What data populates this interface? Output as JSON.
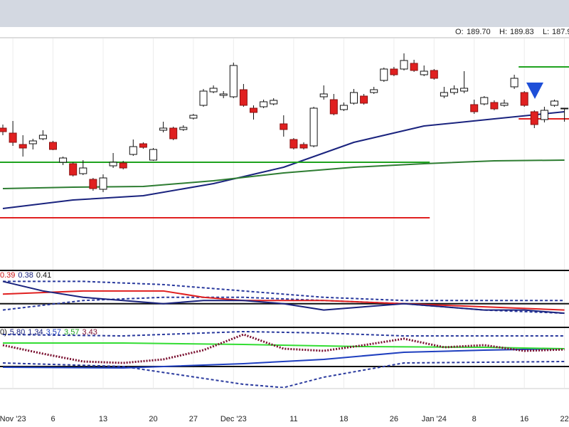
{
  "header": {
    "open_label": "O:",
    "open": "189.70",
    "high_label": "H:",
    "high": "189.83",
    "low_label": "L:",
    "low": "187.9"
  },
  "chart_data": [
    {
      "type": "candlestick",
      "categories": [
        null,
        "Nov '23",
        null,
        null,
        null,
        "6",
        null,
        null,
        null,
        null,
        "13",
        null,
        null,
        null,
        null,
        "20",
        null,
        null,
        null,
        "27",
        null,
        null,
        null,
        "Dec '23",
        null,
        null,
        null,
        null,
        null,
        "11",
        null,
        null,
        null,
        null,
        "18",
        null,
        null,
        null,
        null,
        "26",
        null,
        null,
        null,
        "Jan '24",
        null,
        null,
        null,
        "8",
        null,
        null,
        null,
        null,
        "16",
        null,
        null,
        null,
        "22"
      ],
      "open": [
        187.0,
        186.3,
        184.7,
        184.8,
        185.5,
        185.0,
        182.2,
        182.0,
        180.6,
        179.8,
        178.4,
        181.7,
        182.1,
        183.3,
        184.8,
        182.5,
        186.7,
        187.0,
        186.8,
        188.4,
        190.2,
        192.1,
        191.6,
        191.4,
        192.4,
        189.8,
        190.0,
        190.4,
        187.6,
        185.4,
        184.7,
        184.5,
        191.4,
        191.0,
        189.6,
        190.5,
        191.5,
        192.0,
        193.7,
        195.3,
        195.3,
        196.1,
        194.5,
        195.1,
        191.5,
        192.0,
        192.2,
        190.3,
        190.4,
        190.6,
        190.2,
        192.8,
        192.0,
        189.3,
        188.2,
        190.2,
        189.7
      ],
      "high": [
        187.5,
        188.0,
        186.0,
        185.5,
        186.7,
        185.2,
        183.0,
        182.2,
        182.5,
        180.0,
        180.5,
        183.5,
        182.4,
        185.4,
        185.0,
        184.2,
        187.9,
        187.2,
        187.4,
        189.0,
        192.5,
        193.0,
        192.2,
        196.2,
        193.2,
        190.2,
        191.0,
        191.2,
        188.8,
        185.6,
        185.0,
        190.0,
        193.0,
        191.8,
        190.6,
        192.5,
        191.8,
        192.8,
        195.5,
        195.6,
        197.5,
        196.6,
        195.8,
        195.3,
        192.8,
        193.0,
        195.0,
        191.0,
        191.5,
        190.9,
        191.0,
        194.5,
        192.2,
        189.5,
        190.0,
        191.0,
        189.83
      ],
      "low": [
        186.0,
        184.5,
        183.0,
        184.0,
        185.3,
        183.9,
        181.8,
        180.2,
        180.4,
        178.2,
        178.0,
        181.4,
        181.2,
        183.1,
        184.1,
        182.4,
        186.4,
        185.3,
        186.6,
        188.2,
        190.0,
        191.9,
        191.2,
        191.2,
        190.0,
        188.2,
        189.8,
        190.2,
        185.8,
        184.0,
        184.0,
        184.3,
        191.0,
        188.8,
        189.4,
        190.3,
        190.3,
        191.8,
        193.5,
        194.3,
        195.1,
        194.9,
        194.3,
        193.8,
        191.2,
        191.7,
        191.9,
        189.0,
        190.2,
        189.5,
        190.0,
        192.5,
        190.0,
        187.0,
        187.8,
        190.0,
        187.9
      ],
      "close": [
        186.5,
        185.0,
        184.2,
        185.2,
        186.0,
        184.0,
        182.8,
        180.4,
        181.4,
        178.5,
        180.0,
        182.2,
        181.4,
        184.4,
        184.3,
        184.0,
        187.0,
        185.5,
        187.1,
        188.8,
        192.2,
        192.6,
        191.8,
        195.8,
        190.2,
        189.2,
        190.7,
        190.9,
        186.8,
        184.2,
        184.2,
        189.8,
        191.8,
        189.0,
        190.2,
        192.0,
        190.5,
        192.4,
        195.3,
        194.5,
        196.5,
        195.1,
        195.0,
        194.0,
        192.0,
        192.5,
        192.6,
        189.3,
        191.3,
        189.7,
        190.5,
        194.0,
        190.2,
        187.5,
        189.5,
        190.8,
        189.8
      ],
      "up_color": "#ffffff",
      "down_color": "#e02020",
      "ylim": [
        167.5,
        199.5
      ],
      "overlays": [
        {
          "color": "#1a237e",
          "x": [
            0,
            7,
            14,
            21,
            28,
            35,
            42,
            49,
            56
          ],
          "values": [
            175.7,
            176.9,
            177.5,
            179.2,
            181.5,
            185.0,
            187.3,
            188.3,
            189.3
          ]
        },
        {
          "color": "#2e7d32",
          "x": [
            0,
            7,
            14,
            21,
            28,
            35,
            42,
            49,
            56
          ],
          "values": [
            178.5,
            178.7,
            178.8,
            179.6,
            180.7,
            181.5,
            182.0,
            182.4,
            182.5
          ]
        }
      ],
      "hlines": [
        {
          "from": 0,
          "to": 42,
          "value": 182.2,
          "color": "#1fa31f"
        },
        {
          "from": 0,
          "to": 42,
          "value": 174.4,
          "color": "#e02020"
        },
        {
          "from": 52,
          "to": 56,
          "value": 195.6,
          "color": "#1fa31f"
        },
        {
          "from": 52,
          "to": 56,
          "value": 188.3,
          "color": "#e02020"
        }
      ]
    },
    {
      "type": "line",
      "legend": [
        {
          "text": "0.39",
          "color": "#d01818"
        },
        {
          "text": "0.38",
          "color": "#1a237e"
        },
        {
          "text": "0.41",
          "color": "#111111"
        }
      ],
      "ylim": [
        0.34,
        0.51
      ],
      "hlines": [
        {
          "from": 0,
          "to": 56,
          "value": 0.41,
          "color": "#111111"
        }
      ],
      "series": [
        {
          "color": "#2a3a9e",
          "dash": "4 3",
          "x": [
            0,
            8,
            16,
            24,
            32,
            40,
            48,
            56
          ],
          "values": [
            0.48,
            0.48,
            0.47,
            0.45,
            0.43,
            0.42,
            0.42,
            0.42
          ]
        },
        {
          "color": "#2a3a9e",
          "dash": "4 3",
          "x": [
            0,
            8,
            16,
            24,
            32,
            40,
            48,
            56
          ],
          "values": [
            0.39,
            0.42,
            0.43,
            0.43,
            0.42,
            0.41,
            0.39,
            0.38
          ]
        },
        {
          "color": "#e02020",
          "x": [
            0,
            8,
            12,
            16,
            20,
            24,
            32,
            40,
            48,
            56
          ],
          "values": [
            0.44,
            0.45,
            0.45,
            0.45,
            0.43,
            0.42,
            0.42,
            0.41,
            0.4,
            0.39
          ]
        },
        {
          "color": "#1a237e",
          "x": [
            0,
            4,
            8,
            12,
            16,
            20,
            24,
            28,
            32,
            36,
            40,
            44,
            48,
            52,
            56
          ],
          "values": [
            0.48,
            0.45,
            0.43,
            0.42,
            0.41,
            0.42,
            0.42,
            0.41,
            0.39,
            0.4,
            0.41,
            0.4,
            0.39,
            0.39,
            0.38
          ]
        }
      ]
    },
    {
      "type": "line",
      "legend": [
        {
          "text": "0)",
          "color": "#111111"
        },
        {
          "text": "5.80",
          "color": "#1a237e"
        },
        {
          "text": "1.34",
          "color": "#1a237e"
        },
        {
          "text": "3.57",
          "color": "#1f3fbf"
        },
        {
          "text": "3.57",
          "color": "#1fa31f"
        },
        {
          "text": "3.43",
          "color": "#7a1030"
        }
      ],
      "ylim": [
        -3.25,
        7.04
      ],
      "hlines": [
        {
          "from": 0,
          "to": 56,
          "value": 0.47,
          "color": "#111111"
        }
      ],
      "series": [
        {
          "color": "#2a3a9e",
          "dash": "4 3",
          "x": [
            0,
            12,
            24,
            32,
            40,
            56
          ],
          "values": [
            6.05,
            5.8,
            6.55,
            6.3,
            5.8,
            5.8
          ]
        },
        {
          "color": "#2a3a9e",
          "dash": "4 3",
          "x": [
            0,
            12,
            24,
            28,
            32,
            40,
            56
          ],
          "values": [
            1.09,
            0.47,
            -2.63,
            -3.2,
            -1.39,
            1.09,
            1.34
          ]
        },
        {
          "color": "#1f3fbf",
          "x": [
            0,
            12,
            24,
            32,
            40,
            48,
            56
          ],
          "values": [
            0.35,
            0.22,
            0.97,
            1.71,
            2.95,
            3.32,
            3.57
          ]
        },
        {
          "color": "#33dd33",
          "x": [
            0,
            12,
            24,
            36,
            48,
            56
          ],
          "values": [
            4.56,
            4.56,
            4.31,
            3.94,
            3.82,
            3.57
          ]
        },
        {
          "color": "#7a1030",
          "dash": "2 2",
          "width": 3,
          "x": [
            0,
            4,
            8,
            12,
            16,
            20,
            24,
            28,
            32,
            36,
            40,
            44,
            48,
            52,
            56
          ],
          "values": [
            4.19,
            2.7,
            1.34,
            1.09,
            1.71,
            3.32,
            6.05,
            3.57,
            3.2,
            4.19,
            5.31,
            3.82,
            4.19,
            3.2,
            3.43
          ]
        }
      ]
    }
  ]
}
